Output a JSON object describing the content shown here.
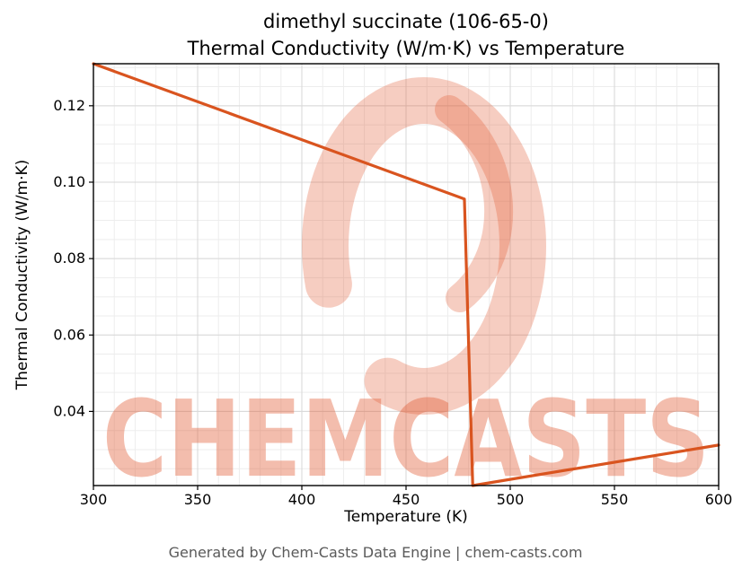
{
  "page": {
    "background": "#ffffff",
    "footer": "Generated by Chem-Casts Data Engine | chem-casts.com"
  },
  "chart_data": {
    "type": "line",
    "title_lines": [
      "dimethyl succinate (106-65-0)",
      "Thermal Conductivity (W/m·K) vs Temperature"
    ],
    "xlabel": "Temperature (K)",
    "ylabel": "Thermal Conductivity (W/m·K)",
    "xlim": [
      300,
      600
    ],
    "ylim": [
      0.0206,
      0.131
    ],
    "x_major_ticks": [
      300,
      350,
      400,
      450,
      500,
      550,
      600
    ],
    "y_major_ticks": [
      0.04,
      0.06,
      0.08,
      0.1,
      0.12
    ],
    "x_minor_step": 10,
    "y_minor_step": 0.005,
    "grid": true,
    "legend": "none",
    "line_color": "#d9541f",
    "line_width": 3.2,
    "series": [
      {
        "name": "thermal-conductivity",
        "points": [
          [
            300,
            0.131
          ],
          [
            478,
            0.0956
          ],
          [
            482,
            0.0206
          ],
          [
            600,
            0.0312
          ]
        ]
      }
    ],
    "watermark": {
      "text": "CHEMCASTS",
      "color": "#e05a33",
      "text_opacity": 0.4,
      "swirl_opacity": 0.3
    }
  }
}
